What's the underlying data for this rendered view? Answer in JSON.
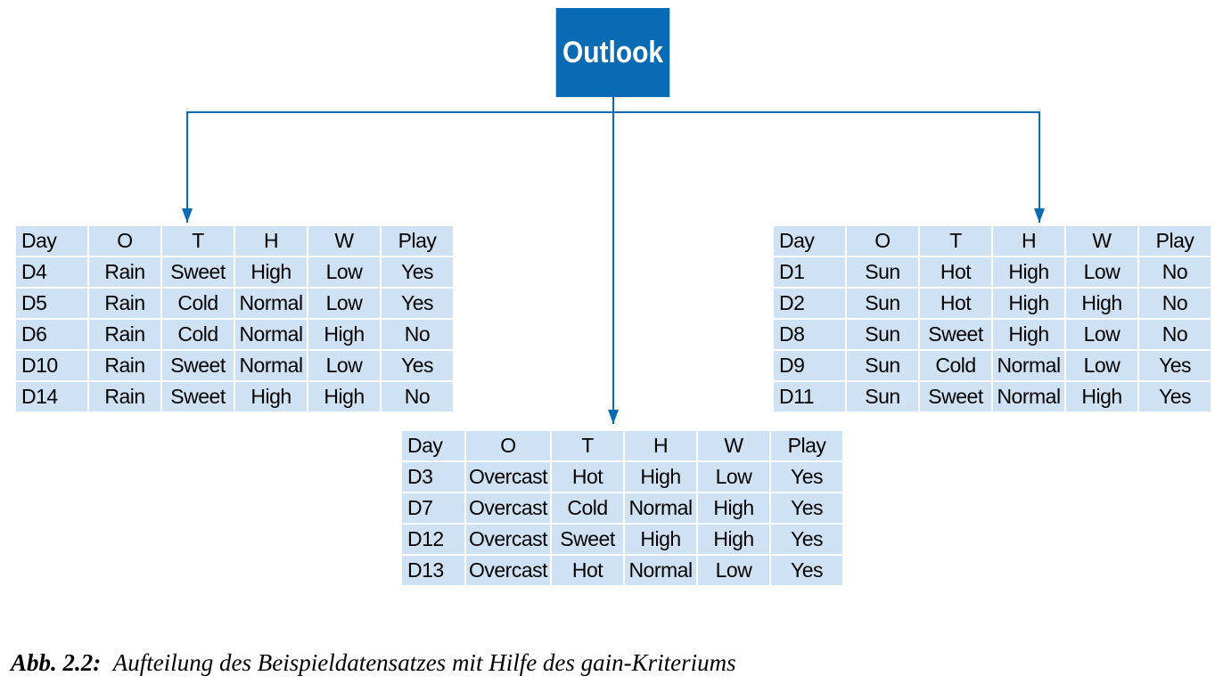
{
  "root": {
    "label": "Outlook"
  },
  "colors": {
    "node_fill": "#0a6bb5",
    "edge": "#0a6bb5",
    "cell_fill": "#cfe2f3"
  },
  "tables": {
    "left": {
      "header": [
        "Day",
        "O",
        "T",
        "H",
        "W",
        "Play"
      ],
      "rows": [
        [
          "D4",
          "Rain",
          "Sweet",
          "High",
          "Low",
          "Yes"
        ],
        [
          "D5",
          "Rain",
          "Cold",
          "Normal",
          "Low",
          "Yes"
        ],
        [
          "D6",
          "Rain",
          "Cold",
          "Normal",
          "High",
          "No"
        ],
        [
          "D10",
          "Rain",
          "Sweet",
          "Normal",
          "Low",
          "Yes"
        ],
        [
          "D14",
          "Rain",
          "Sweet",
          "High",
          "High",
          "No"
        ]
      ]
    },
    "middle": {
      "header": [
        "Day",
        "O",
        "T",
        "H",
        "W",
        "Play"
      ],
      "rows": [
        [
          "D3",
          "Overcast",
          "Hot",
          "High",
          "Low",
          "Yes"
        ],
        [
          "D7",
          "Overcast",
          "Cold",
          "Normal",
          "High",
          "Yes"
        ],
        [
          "D12",
          "Overcast",
          "Sweet",
          "High",
          "High",
          "Yes"
        ],
        [
          "D13",
          "Overcast",
          "Hot",
          "Normal",
          "Low",
          "Yes"
        ]
      ]
    },
    "right": {
      "header": [
        "Day",
        "O",
        "T",
        "H",
        "W",
        "Play"
      ],
      "rows": [
        [
          "D1",
          "Sun",
          "Hot",
          "High",
          "Low",
          "No"
        ],
        [
          "D2",
          "Sun",
          "Hot",
          "High",
          "High",
          "No"
        ],
        [
          "D8",
          "Sun",
          "Sweet",
          "High",
          "Low",
          "No"
        ],
        [
          "D9",
          "Sun",
          "Cold",
          "Normal",
          "Low",
          "Yes"
        ],
        [
          "D11",
          "Sun",
          "Sweet",
          "Normal",
          "High",
          "Yes"
        ]
      ]
    }
  },
  "caption": {
    "label": "Abb. 2.2:",
    "text": "Aufteilung des Beispieldatensatzes mit Hilfe des gain-Kriteriums"
  }
}
